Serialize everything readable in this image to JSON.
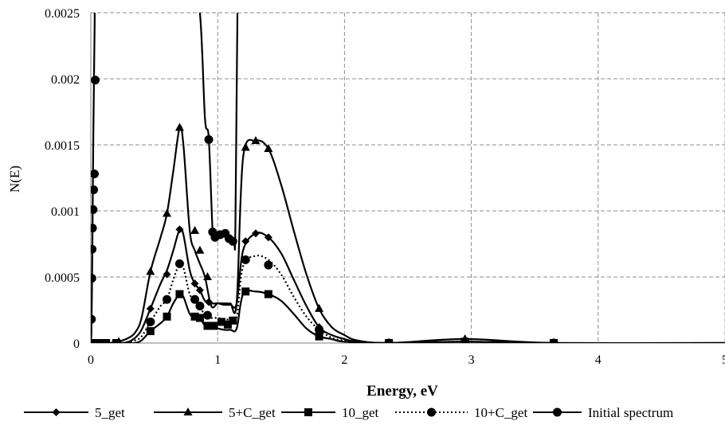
{
  "chart_data": {
    "type": "line",
    "title": "",
    "xlabel": "Energy, eV",
    "ylabel": "N(E)",
    "xlim": [
      0,
      5
    ],
    "ylim": [
      0,
      0.0025
    ],
    "x_ticks": [
      0,
      1,
      2,
      3,
      4,
      5
    ],
    "x_tick_labels": [
      "0",
      "1",
      "2",
      "3",
      "4",
      "5"
    ],
    "y_ticks": [
      0,
      0.0005,
      0.001,
      0.0015,
      0.002,
      0.0025
    ],
    "y_tick_labels": [
      "0",
      "0.0005",
      "0.001",
      "0.0015",
      "0.002",
      "0.0025"
    ],
    "grid": "dashed",
    "legend_position": "bottom",
    "series": [
      {
        "name": "5_get",
        "marker": "diamond",
        "line": "solid",
        "color": "#000000",
        "curve": [
          [
            0,
            0
          ],
          [
            0.05,
            0
          ],
          [
            0.1,
            0
          ],
          [
            0.15,
            0
          ],
          [
            0.2,
            0
          ],
          [
            0.25,
            0
          ],
          [
            0.3,
            1e-05
          ],
          [
            0.35,
            4e-05
          ],
          [
            0.4,
            0.0001
          ],
          [
            0.47,
            0.00026
          ],
          [
            0.55,
            0.00045
          ],
          [
            0.6,
            0.00055
          ],
          [
            0.65,
            0.0007
          ],
          [
            0.7,
            0.00086
          ],
          [
            0.73,
            0.00082
          ],
          [
            0.78,
            0.00055
          ],
          [
            0.82,
            0.00045
          ],
          [
            0.86,
            0.0004
          ],
          [
            0.9,
            0.00032
          ],
          [
            0.95,
            0.0003
          ],
          [
            1.0,
            0.0003
          ],
          [
            1.05,
            0.00029
          ],
          [
            1.1,
            0.00029
          ],
          [
            1.15,
            0.0003
          ],
          [
            1.2,
            0.0007
          ],
          [
            1.3,
            0.00083
          ],
          [
            1.4,
            0.0008
          ],
          [
            1.5,
            0.00068
          ],
          [
            1.6,
            0.00048
          ],
          [
            1.7,
            0.00028
          ],
          [
            1.8,
            0.00012
          ],
          [
            1.9,
            6e-05
          ],
          [
            2.0,
            3e-05
          ],
          [
            2.1,
            1e-05
          ],
          [
            2.35,
            0
          ],
          [
            2.95,
            1e-05
          ],
          [
            3.65,
            0
          ],
          [
            5.0,
            0
          ]
        ],
        "markers": [
          [
            0.47,
            0.00026
          ],
          [
            0.6,
            0.00052
          ],
          [
            0.7,
            0.00086
          ],
          [
            0.82,
            0.00045
          ],
          [
            0.86,
            0.0004
          ],
          [
            0.93,
            0.00031
          ],
          [
            1.22,
            0.00077
          ],
          [
            1.3,
            0.00083
          ],
          [
            1.4,
            0.0008
          ],
          [
            1.8,
            0.00012
          ],
          [
            2.35,
            0
          ],
          [
            2.95,
            1e-05
          ],
          [
            3.65,
            0
          ]
        ]
      },
      {
        "name": "5+C_get",
        "marker": "triangle",
        "line": "solid",
        "color": "#000000",
        "curve": [
          [
            0,
            0
          ],
          [
            0.05,
            0
          ],
          [
            0.1,
            0
          ],
          [
            0.15,
            0
          ],
          [
            0.2,
            1e-05
          ],
          [
            0.25,
            2e-05
          ],
          [
            0.3,
            4e-05
          ],
          [
            0.35,
            8e-05
          ],
          [
            0.4,
            0.00019
          ],
          [
            0.47,
            0.00054
          ],
          [
            0.55,
            0.0008
          ],
          [
            0.6,
            0.00098
          ],
          [
            0.65,
            0.0013
          ],
          [
            0.7,
            0.00163
          ],
          [
            0.73,
            0.0015
          ],
          [
            0.78,
            0.00085
          ],
          [
            0.82,
            0.0007
          ],
          [
            0.86,
            0.0006
          ],
          [
            0.9,
            0.0005
          ],
          [
            0.95,
            0.00028
          ],
          [
            1.0,
            0.0003
          ],
          [
            1.05,
            0.0003
          ],
          [
            1.1,
            0.0003
          ],
          [
            1.15,
            0.00031
          ],
          [
            1.2,
            0.0014
          ],
          [
            1.3,
            0.00153
          ],
          [
            1.4,
            0.00147
          ],
          [
            1.5,
            0.0012
          ],
          [
            1.6,
            0.00085
          ],
          [
            1.7,
            0.00052
          ],
          [
            1.8,
            0.00026
          ],
          [
            1.9,
            0.00012
          ],
          [
            2.0,
            6e-05
          ],
          [
            2.1,
            2e-05
          ],
          [
            2.35,
            0
          ],
          [
            2.95,
            3e-05
          ],
          [
            3.65,
            0
          ],
          [
            5.0,
            0
          ]
        ],
        "markers": [
          [
            0.22,
            1e-05
          ],
          [
            0.47,
            0.00054
          ],
          [
            0.6,
            0.00098
          ],
          [
            0.7,
            0.00163
          ],
          [
            0.82,
            0.00085
          ],
          [
            0.86,
            0.0007
          ],
          [
            0.92,
            0.0005
          ],
          [
            1.22,
            0.00148
          ],
          [
            1.3,
            0.00153
          ],
          [
            1.4,
            0.00147
          ],
          [
            1.8,
            0.00026
          ],
          [
            2.35,
            0
          ],
          [
            2.95,
            3e-05
          ],
          [
            3.65,
            0
          ]
        ]
      },
      {
        "name": "10_get",
        "marker": "square",
        "line": "solid",
        "color": "#000000",
        "curve": [
          [
            0,
            0
          ],
          [
            0.05,
            0
          ],
          [
            0.1,
            0
          ],
          [
            0.15,
            0
          ],
          [
            0.2,
            0
          ],
          [
            0.25,
            0
          ],
          [
            0.3,
            0
          ],
          [
            0.35,
            0
          ],
          [
            0.4,
            2e-05
          ],
          [
            0.47,
            9e-05
          ],
          [
            0.55,
            0.00015
          ],
          [
            0.6,
            0.0002
          ],
          [
            0.65,
            0.0003
          ],
          [
            0.7,
            0.00037
          ],
          [
            0.73,
            0.00035
          ],
          [
            0.78,
            0.00022
          ],
          [
            0.82,
            0.0002
          ],
          [
            0.86,
            0.00019
          ],
          [
            0.9,
            0.00013
          ],
          [
            0.95,
            0.00011
          ],
          [
            1.0,
            0.00011
          ],
          [
            1.05,
            0.0001
          ],
          [
            1.1,
            0.0001
          ],
          [
            1.15,
            0.00011
          ],
          [
            1.2,
            0.00037
          ],
          [
            1.3,
            0.00039
          ],
          [
            1.4,
            0.00037
          ],
          [
            1.5,
            0.00032
          ],
          [
            1.6,
            0.00022
          ],
          [
            1.7,
            0.00011
          ],
          [
            1.8,
            5e-05
          ],
          [
            1.9,
            3e-05
          ],
          [
            2.0,
            1e-05
          ],
          [
            2.35,
            0
          ],
          [
            2.95,
            1e-05
          ],
          [
            3.65,
            0
          ],
          [
            5.0,
            0
          ]
        ],
        "markers": [
          [
            0.03,
            0
          ],
          [
            0.07,
            0
          ],
          [
            0.12,
            0
          ],
          [
            0.2,
            0
          ],
          [
            0.47,
            9e-05
          ],
          [
            0.6,
            0.0002
          ],
          [
            0.7,
            0.00037
          ],
          [
            0.82,
            0.0002
          ],
          [
            0.86,
            0.00019
          ],
          [
            0.92,
            0.00013
          ],
          [
            0.97,
            0.00013
          ],
          [
            1.03,
            0.00016
          ],
          [
            1.08,
            0.00014
          ],
          [
            1.12,
            0.00017
          ],
          [
            1.22,
            0.00039
          ],
          [
            1.4,
            0.00037
          ],
          [
            1.8,
            5e-05
          ],
          [
            2.35,
            0
          ],
          [
            2.95,
            1e-05
          ],
          [
            3.65,
            0
          ]
        ]
      },
      {
        "name": "10+C_get",
        "marker": "circle",
        "line": "dotted",
        "color": "#000000",
        "curve": [
          [
            0,
            0
          ],
          [
            0.05,
            0
          ],
          [
            0.1,
            0
          ],
          [
            0.15,
            0
          ],
          [
            0.2,
            0
          ],
          [
            0.25,
            0
          ],
          [
            0.3,
            1e-05
          ],
          [
            0.35,
            2e-05
          ],
          [
            0.4,
            5e-05
          ],
          [
            0.47,
            0.00016
          ],
          [
            0.55,
            0.00028
          ],
          [
            0.6,
            0.00033
          ],
          [
            0.65,
            0.00048
          ],
          [
            0.7,
            0.0006
          ],
          [
            0.73,
            0.00057
          ],
          [
            0.78,
            0.00037
          ],
          [
            0.82,
            0.00033
          ],
          [
            0.86,
            0.00028
          ],
          [
            0.9,
            0.00021
          ],
          [
            0.95,
            0.00019
          ],
          [
            1.0,
            0.00019
          ],
          [
            1.05,
            0.00018
          ],
          [
            1.1,
            0.00018
          ],
          [
            1.15,
            0.0002
          ],
          [
            1.2,
            0.00058
          ],
          [
            1.3,
            0.00066
          ],
          [
            1.4,
            0.00063
          ],
          [
            1.5,
            0.00052
          ],
          [
            1.6,
            0.00035
          ],
          [
            1.7,
            0.0002
          ],
          [
            1.8,
            0.0001
          ],
          [
            1.9,
            4e-05
          ],
          [
            2.0,
            2e-05
          ],
          [
            2.35,
            0
          ],
          [
            2.95,
            1e-05
          ],
          [
            3.65,
            0
          ],
          [
            5.0,
            0
          ]
        ],
        "markers": [
          [
            0.47,
            0.00016
          ],
          [
            0.6,
            0.00033
          ],
          [
            0.7,
            0.0006
          ],
          [
            0.82,
            0.00033
          ],
          [
            0.86,
            0.00028
          ],
          [
            0.92,
            0.00021
          ],
          [
            1.22,
            0.00063
          ],
          [
            1.4,
            0.00059
          ],
          [
            1.8,
            0.0001
          ],
          [
            2.35,
            0
          ],
          [
            2.95,
            1e-05
          ],
          [
            3.65,
            0
          ]
        ]
      },
      {
        "name": "Initial spectrum",
        "marker": "circle",
        "line": "solid",
        "color": "#000000",
        "curve": [
          [
            0,
            0
          ],
          [
            0.005,
            0.0001
          ],
          [
            0.01,
            0.0005
          ],
          [
            0.015,
            0.00105
          ],
          [
            0.02,
            0.0016
          ],
          [
            0.025,
            0.002
          ],
          [
            0.03,
            0.0024
          ],
          [
            0.04,
            0.0029
          ],
          [
            0.12,
            0.0029
          ],
          [
            0.2,
            0.0029
          ],
          [
            0.78,
            0.0029
          ],
          [
            0.86,
            0.0025
          ],
          [
            0.9,
            0.0017
          ],
          [
            0.93,
            0.00155
          ],
          [
            0.96,
            0.00085
          ],
          [
            0.98,
            0.0008
          ],
          [
            1.0,
            0.00081
          ],
          [
            1.05,
            0.00082
          ],
          [
            1.1,
            0.00078
          ],
          [
            1.13,
            0.00077
          ],
          [
            1.14,
            0.0009
          ],
          [
            1.16,
            0.0029
          ],
          [
            1.17,
            0.0029
          ]
        ],
        "markers": [
          [
            0.005,
            0.00018
          ],
          [
            0.008,
            0.00049
          ],
          [
            0.01,
            0.00071
          ],
          [
            0.013,
            0.00087
          ],
          [
            0.018,
            0.00101
          ],
          [
            0.022,
            0.00116
          ],
          [
            0.028,
            0.00128
          ],
          [
            0.035,
            0.00199
          ],
          [
            0.93,
            0.00154
          ],
          [
            0.96,
            0.00084
          ],
          [
            0.98,
            0.0008
          ],
          [
            1.02,
            0.00082
          ],
          [
            1.06,
            0.00083
          ],
          [
            1.09,
            0.00079
          ],
          [
            1.12,
            0.00077
          ]
        ]
      }
    ]
  }
}
